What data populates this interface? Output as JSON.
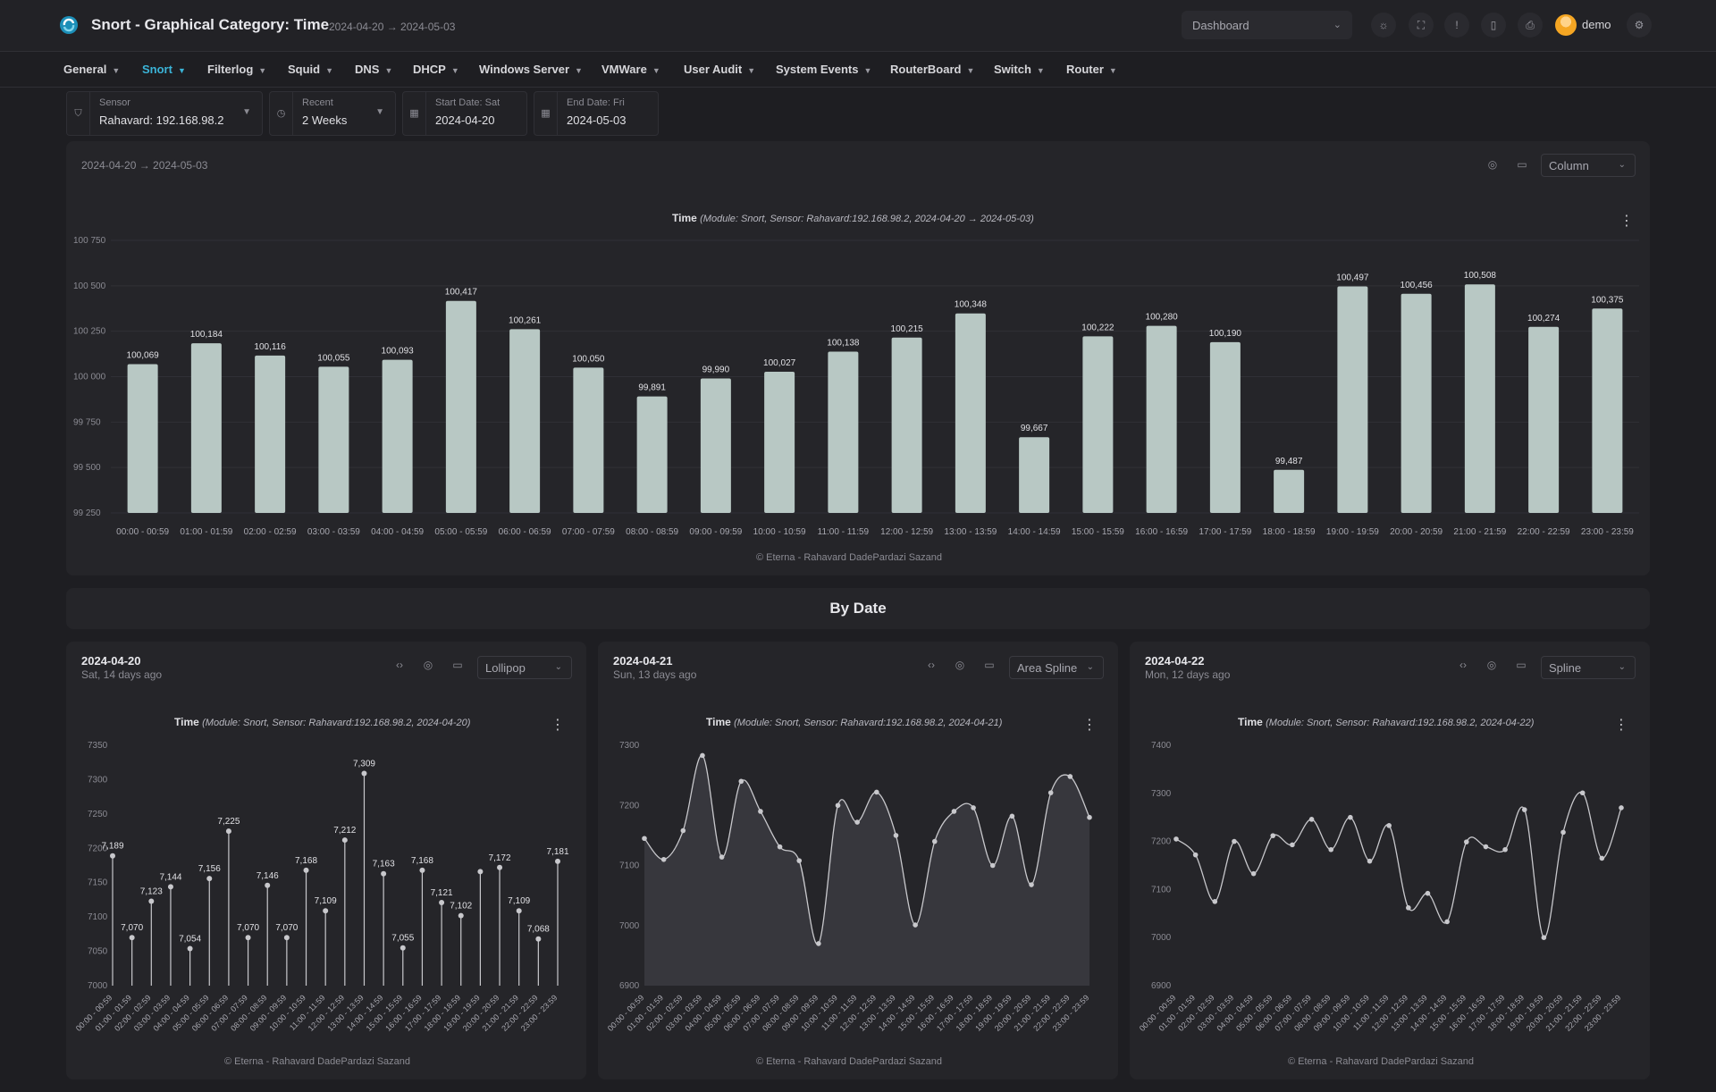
{
  "header": {
    "title": "Snort - Graphical Category: Time",
    "range": "2024-04-20 → 2024-05-03",
    "dashboard_select": "Dashboard",
    "user": "demo",
    "icons": [
      "sun-icon",
      "fullscreen-icon",
      "alert-icon",
      "device-icon",
      "print-icon"
    ]
  },
  "nav": {
    "items": [
      {
        "label": "General",
        "active": false
      },
      {
        "label": "Snort",
        "active": true
      },
      {
        "label": "Filterlog",
        "active": false
      },
      {
        "label": "Squid",
        "active": false
      },
      {
        "label": "DNS",
        "active": false
      },
      {
        "label": "DHCP",
        "active": false
      },
      {
        "label": "Windows Server",
        "active": false
      },
      {
        "label": "VMWare",
        "active": false
      },
      {
        "label": "User Audit",
        "active": false
      },
      {
        "label": "System Events",
        "active": false
      },
      {
        "label": "RouterBoard",
        "active": false
      },
      {
        "label": "Switch",
        "active": false
      },
      {
        "label": "Router",
        "active": false
      }
    ]
  },
  "filters": {
    "sensor": {
      "label": "Sensor",
      "value": "Rahavard: 192.168.98.2"
    },
    "recent": {
      "label": "Recent",
      "value": "2 Weeks"
    },
    "start": {
      "label": "Start Date: Sat",
      "value": "2024-04-20"
    },
    "end": {
      "label": "End Date: Fri",
      "value": "2024-05-03"
    }
  },
  "main_card": {
    "range": "2024-04-20 → 2024-05-03",
    "chart_type_select": "Column",
    "title_bold": "Time",
    "title_rest": "(Module: Snort, Sensor: Rahavard:192.168.98.2, 2024-04-20 → 2024-05-03)",
    "credit": "© Eterna - Rahavard DadePardazi Sazand"
  },
  "section_title": "By Date",
  "small_cards": [
    {
      "date": "2024-04-20",
      "sub": "Sat, 14 days ago",
      "chart_type_select": "Lollipop",
      "title_bold": "Time",
      "title_rest": "(Module: Snort, Sensor: Rahavard:192.168.98.2, 2024-04-20)",
      "credit": "© Eterna - Rahavard DadePardazi Sazand"
    },
    {
      "date": "2024-04-21",
      "sub": "Sun, 13 days ago",
      "chart_type_select": "Area Spline",
      "title_bold": "Time",
      "title_rest": "(Module: Snort, Sensor: Rahavard:192.168.98.2, 2024-04-21)",
      "credit": "© Eterna - Rahavard DadePardazi Sazand"
    },
    {
      "date": "2024-04-22",
      "sub": "Mon, 12 days ago",
      "chart_type_select": "Spline",
      "title_bold": "Time",
      "title_rest": "(Module: Snort, Sensor: Rahavard:192.168.98.2, 2024-04-22)",
      "credit": "© Eterna - Rahavard DadePardazi Sazand"
    }
  ],
  "colors": {
    "accent": "#3bb4d8",
    "bar": "#b8c8c4",
    "line": "#c8c8cc",
    "area": "#3a3a3f"
  },
  "chart_data": [
    {
      "type": "bar",
      "categories": [
        "00:00 - 00:59",
        "01:00 - 01:59",
        "02:00 - 02:59",
        "03:00 - 03:59",
        "04:00 - 04:59",
        "05:00 - 05:59",
        "06:00 - 06:59",
        "07:00 - 07:59",
        "08:00 - 08:59",
        "09:00 - 09:59",
        "10:00 - 10:59",
        "11:00 - 11:59",
        "12:00 - 12:59",
        "13:00 - 13:59",
        "14:00 - 14:59",
        "15:00 - 15:59",
        "16:00 - 16:59",
        "17:00 - 17:59",
        "18:00 - 18:59",
        "19:00 - 19:59",
        "20:00 - 20:59",
        "21:00 - 21:59",
        "22:00 - 22:59",
        "23:00 - 23:59"
      ],
      "values": [
        100069,
        100184,
        100116,
        100055,
        100093,
        100417,
        100261,
        100050,
        99891,
        99990,
        100027,
        100138,
        100215,
        100348,
        99667,
        100222,
        100280,
        100190,
        99487,
        100497,
        100456,
        100508,
        100274,
        100375
      ],
      "labels": [
        "100,069",
        "100,184",
        "100,116",
        "100,055",
        "100,093",
        "100,417",
        "100,261",
        "100,050",
        "99,891",
        "99,990",
        "100,027",
        "100,138",
        "100,215",
        "100,348",
        "99,667",
        "100,222",
        "100,280",
        "100,190",
        "99,487",
        "100,497",
        "100,456",
        "100,508",
        "100,274",
        "100,375"
      ],
      "yticks": [
        "99 250",
        "99 500",
        "99 750",
        "100 000",
        "100 250",
        "100 500",
        "100 750"
      ],
      "ylim": [
        99250,
        100750
      ],
      "grid": true,
      "legend": "none"
    },
    {
      "type": "lollipop",
      "categories": [
        "00:00 - 00:59",
        "01:00 - 01:59",
        "02:00 - 02:59",
        "03:00 - 03:59",
        "04:00 - 04:59",
        "05:00 - 05:59",
        "06:00 - 06:59",
        "07:00 - 07:59",
        "08:00 - 08:59",
        "09:00 - 09:59",
        "10:00 - 10:59",
        "11:00 - 11:59",
        "12:00 - 12:59",
        "13:00 - 13:59",
        "14:00 - 14:59",
        "15:00 - 15:59",
        "16:00 - 16:59",
        "17:00 - 17:59",
        "18:00 - 18:59",
        "19:00 - 19:59",
        "20:00 - 20:59",
        "21:00 - 21:59",
        "22:00 - 22:59",
        "23:00 - 23:59"
      ],
      "values": [
        7189,
        7070,
        7123,
        7144,
        7054,
        7156,
        7225,
        7070,
        7146,
        7070,
        7168,
        7109,
        7212,
        7309,
        7163,
        7055,
        7168,
        7121,
        7102,
        7166,
        7172,
        7109,
        7068,
        7181
      ],
      "labels": [
        "7,189",
        "7,070",
        "7,123",
        "7,144",
        "7,054",
        "7,156",
        "7,225",
        "7,070",
        "7,146",
        "7,070",
        "7,168",
        "7,109",
        "7,212",
        "7,309",
        "7,163",
        "7,055",
        "7,168",
        "7,121",
        "7,102",
        "",
        "7,172",
        "7,109",
        "7,068",
        "7,181"
      ],
      "yticks": [
        "7000",
        "7050",
        "7100",
        "7150",
        "7200",
        "7250",
        "7300",
        "7350"
      ],
      "ylim": [
        7000,
        7350
      ],
      "grid": false,
      "legend": "none"
    },
    {
      "type": "area",
      "categories": [
        "00:00 - 00:59",
        "01:00 - 01:59",
        "02:00 - 02:59",
        "03:00 - 03:59",
        "04:00 - 04:59",
        "05:00 - 05:59",
        "06:00 - 06:59",
        "07:00 - 07:59",
        "08:00 - 08:59",
        "09:00 - 09:59",
        "10:00 - 10:59",
        "11:00 - 11:59",
        "12:00 - 12:59",
        "13:00 - 13:59",
        "14:00 - 14:59",
        "15:00 - 15:59",
        "16:00 - 16:59",
        "17:00 - 17:59",
        "18:00 - 18:59",
        "19:00 - 19:59",
        "20:00 - 20:59",
        "21:00 - 21:59",
        "22:00 - 22:59",
        "23:00 - 23:59"
      ],
      "values": [
        7145,
        7110,
        7158,
        7283,
        7114,
        7240,
        7190,
        7131,
        7108,
        6970,
        7200,
        7172,
        7222,
        7150,
        7001,
        7140,
        7190,
        7196,
        7100,
        7182,
        7068,
        7221,
        7248,
        7180
      ],
      "yticks": [
        "6900",
        "7000",
        "7100",
        "7200",
        "7300"
      ],
      "ylim": [
        6900,
        7300
      ],
      "grid": false,
      "legend": "none"
    },
    {
      "type": "line",
      "categories": [
        "00:00 - 00:59",
        "01:00 - 01:59",
        "02:00 - 02:59",
        "03:00 - 03:59",
        "04:00 - 04:59",
        "05:00 - 05:59",
        "06:00 - 06:59",
        "07:00 - 07:59",
        "08:00 - 08:59",
        "09:00 - 09:59",
        "10:00 - 10:59",
        "11:00 - 11:59",
        "12:00 - 12:59",
        "13:00 - 13:59",
        "14:00 - 14:59",
        "15:00 - 15:59",
        "16:00 - 16:59",
        "17:00 - 17:59",
        "18:00 - 18:59",
        "19:00 - 19:59",
        "20:00 - 20:59",
        "21:00 - 21:59",
        "22:00 - 22:59",
        "23:00 - 23:59"
      ],
      "values": [
        7205,
        7172,
        7075,
        7200,
        7133,
        7212,
        7193,
        7246,
        7183,
        7250,
        7159,
        7233,
        7062,
        7092,
        7033,
        7199,
        7189,
        7183,
        7266,
        7000,
        7219,
        7301,
        7165,
        7270
      ],
      "yticks": [
        "6900",
        "7000",
        "7100",
        "7200",
        "7300",
        "7400"
      ],
      "ylim": [
        6900,
        7400
      ],
      "grid": false,
      "legend": "none"
    }
  ]
}
